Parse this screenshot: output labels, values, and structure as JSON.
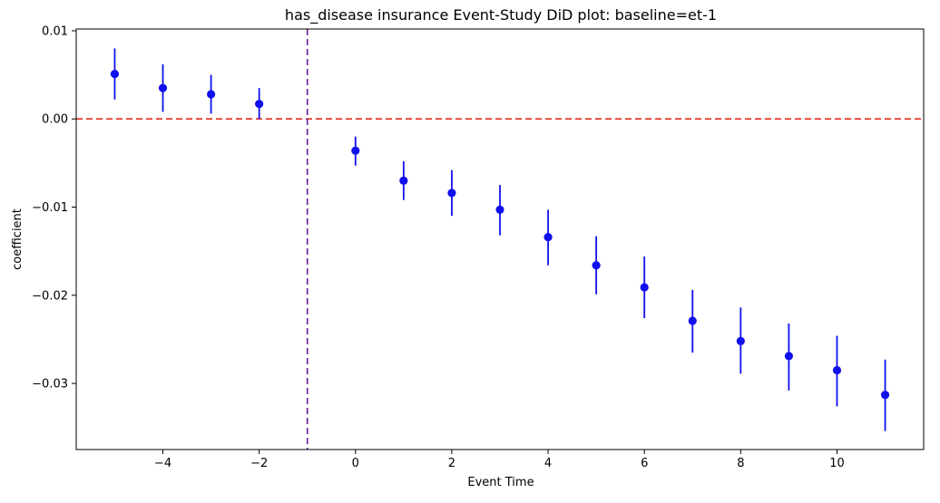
{
  "chart_data": {
    "type": "scatter",
    "title": "has_disease insurance Event-Study DiD plot: baseline=et-1",
    "xlabel": "Event Time",
    "ylabel": "coefficient",
    "xlim": [
      -5.8,
      11.8
    ],
    "ylim": [
      -0.0375,
      0.0102
    ],
    "xticks": [
      -4,
      -2,
      0,
      2,
      4,
      6,
      8,
      10
    ],
    "xtick_labels": [
      "−4",
      "−2",
      "0",
      "2",
      "4",
      "6",
      "8",
      "10"
    ],
    "yticks": [
      0.01,
      0.0,
      -0.01,
      -0.02,
      -0.03
    ],
    "ytick_labels": [
      "0.01",
      "0.00",
      "−0.01",
      "−0.02",
      "−0.03"
    ],
    "grid": false,
    "legend": "none",
    "reference_lines": [
      {
        "orientation": "horizontal",
        "value": 0.0,
        "style": "dashed",
        "color": "#e0301e"
      },
      {
        "orientation": "vertical",
        "value": -1,
        "style": "dashed",
        "color": "#6a1b9a"
      }
    ],
    "series": [
      {
        "color": "#1010ee",
        "points": [
          {
            "x": -5,
            "y": 0.0051,
            "lo": 0.0022,
            "hi": 0.008
          },
          {
            "x": -4,
            "y": 0.0035,
            "lo": 0.0008,
            "hi": 0.0062
          },
          {
            "x": -3,
            "y": 0.0028,
            "lo": 0.0006,
            "hi": 0.005
          },
          {
            "x": -2,
            "y": 0.0017,
            "lo": 0.0,
            "hi": 0.0035
          },
          {
            "x": 0,
            "y": -0.0036,
            "lo": -0.0053,
            "hi": -0.002
          },
          {
            "x": 1,
            "y": -0.007,
            "lo": -0.0092,
            "hi": -0.0048
          },
          {
            "x": 2,
            "y": -0.0084,
            "lo": -0.011,
            "hi": -0.0058
          },
          {
            "x": 3,
            "y": -0.0103,
            "lo": -0.0132,
            "hi": -0.0075
          },
          {
            "x": 4,
            "y": -0.0134,
            "lo": -0.0166,
            "hi": -0.0103
          },
          {
            "x": 5,
            "y": -0.0166,
            "lo": -0.0199,
            "hi": -0.0133
          },
          {
            "x": 6,
            "y": -0.0191,
            "lo": -0.0226,
            "hi": -0.0156
          },
          {
            "x": 7,
            "y": -0.0229,
            "lo": -0.0265,
            "hi": -0.0194
          },
          {
            "x": 8,
            "y": -0.0252,
            "lo": -0.0289,
            "hi": -0.0214
          },
          {
            "x": 9,
            "y": -0.0269,
            "lo": -0.0308,
            "hi": -0.0232
          },
          {
            "x": 10,
            "y": -0.0285,
            "lo": -0.0326,
            "hi": -0.0246
          },
          {
            "x": 11,
            "y": -0.0313,
            "lo": -0.0354,
            "hi": -0.0273
          }
        ]
      }
    ]
  }
}
